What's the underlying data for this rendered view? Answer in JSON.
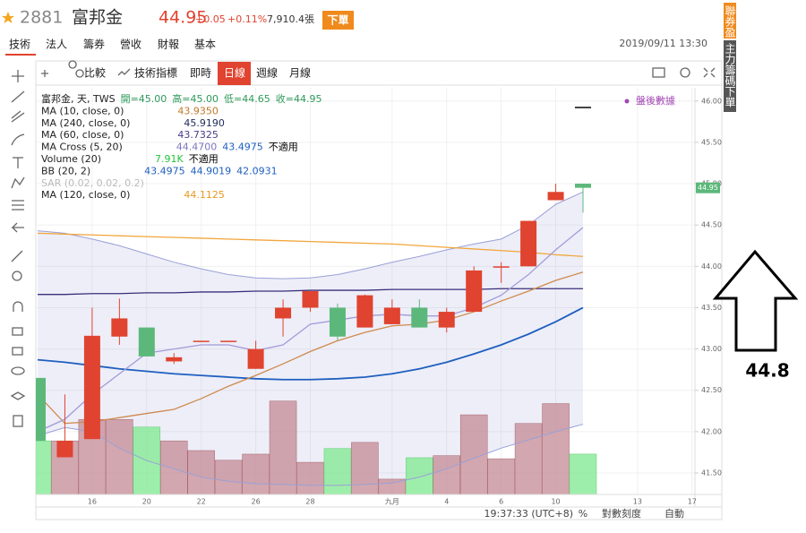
{
  "header": {
    "code": "2881",
    "name": "富邦金",
    "price": "44.95",
    "change": "+0.05",
    "change_pct": "+0.11%",
    "volume": "7,910.4張",
    "order_button": "下單"
  },
  "tabs": [
    "技術",
    "法人",
    "籌券",
    "營收",
    "財報",
    "基本"
  ],
  "datetime": "2019/09/11 13:30",
  "toolbar": [
    "比較",
    "技術指標",
    "即時",
    "日線",
    "週線",
    "月線"
  ],
  "side_tabs": [
    "聯券盈",
    "主力籌碼下單"
  ],
  "post_market": "盤後數據",
  "annotation": "44.8",
  "status_bar": {
    "time": "19:37:33 (UTC+8)",
    "percent": "%",
    "log": "對數刻度",
    "auto": "自動"
  },
  "legend": [
    {
      "name": "富邦金, 天, TWS",
      "values": [
        "開=45.00",
        "高=45.00",
        "低=44.65",
        "收=44.95"
      ],
      "colors": [
        "#2e9a5a",
        "#2e9a5a",
        "#2e9a5a",
        "#2e9a5a"
      ]
    },
    {
      "name": "MA (10, close, 0)",
      "values": [
        "43.9350"
      ],
      "colors": [
        "#c0782a"
      ]
    },
    {
      "name": "MA (240, close, 0)",
      "values": [
        "45.9190"
      ],
      "colors": [
        "#1e2a5a"
      ]
    },
    {
      "name": "MA (60, close, 0)",
      "values": [
        "43.7325"
      ],
      "colors": [
        "#4b3b8a"
      ]
    },
    {
      "name": "MA Cross (5, 20)",
      "values": [
        "44.4700",
        "43.4975",
        "不適用"
      ],
      "colors": [
        "#7d76c2",
        "#1f5fbf",
        "#000000"
      ]
    },
    {
      "name": "Volume (20)",
      "values": [
        "7.91K",
        "不適用"
      ],
      "colors": [
        "#22c43a",
        "#000000"
      ]
    },
    {
      "name": "BB (20, 2)",
      "values": [
        "43.4975",
        "44.9019",
        "42.0931"
      ],
      "colors": [
        "#1f5fbf",
        "#1f5fbf",
        "#1f5fbf"
      ]
    },
    {
      "name": "SAR (0.02, 0.02, 0.2)",
      "values": [],
      "colors": []
    },
    {
      "name": "MA (120, close, 0)",
      "values": [
        "44.1125"
      ],
      "colors": [
        "#e89a20"
      ]
    }
  ],
  "chart_data": {
    "type": "candlestick",
    "categories": [
      null,
      null,
      "16",
      null,
      "20",
      null,
      "22",
      null,
      "26",
      null,
      "28",
      null,
      null,
      "九月",
      null,
      "4",
      null,
      "6",
      null,
      "10",
      null,
      null,
      "13",
      null,
      "17"
    ],
    "open": [
      42.65,
      41.69,
      41.91,
      43.15,
      43.26,
      42.85,
      43.1,
      43.1,
      42.76,
      43.37,
      43.5,
      43.5,
      43.26,
      43.3,
      43.5,
      43.26,
      43.45,
      44.0,
      44.0,
      44.8,
      45.0,
      null,
      null,
      null,
      null
    ],
    "high": [
      42.65,
      42.45,
      43.5,
      43.61,
      43.26,
      42.95,
      43.1,
      43.1,
      43.1,
      43.6,
      43.7,
      43.55,
      43.66,
      43.6,
      43.6,
      43.5,
      44.0,
      44.05,
      44.55,
      45.0,
      45.0,
      null,
      null,
      null,
      null
    ],
    "low": [
      41.89,
      41.69,
      41.91,
      43.05,
      42.91,
      42.82,
      43.1,
      43.1,
      42.76,
      43.15,
      43.45,
      43.1,
      43.26,
      43.3,
      43.26,
      43.2,
      43.45,
      43.8,
      44.0,
      44.8,
      44.65,
      null,
      null,
      null,
      null
    ],
    "close": [
      41.89,
      41.89,
      43.16,
      43.37,
      42.91,
      42.9,
      43.1,
      43.1,
      43.0,
      43.5,
      43.7,
      43.15,
      43.65,
      43.5,
      43.26,
      43.45,
      43.95,
      44.0,
      44.55,
      44.9,
      44.95,
      null,
      null,
      null,
      null
    ],
    "volume": [
      10.5,
      10.5,
      14.7,
      14.7,
      13.2,
      10.5,
      8.6,
      6.7,
      7.9,
      18.3,
      6.3,
      9.0,
      10.2,
      3.0,
      7.2,
      7.6,
      15.6,
      7.0,
      13.9,
      17.8,
      7.91,
      null,
      null,
      null,
      null
    ],
    "up_color": "#e0432f",
    "down_color": "#5cb87a",
    "volume_up_color": "#c48a94",
    "volume_down_color": "#7de88f",
    "series": [
      {
        "color": "#f2a63c",
        "values": [
          44.4,
          44.39,
          44.38,
          44.37,
          44.36,
          44.35,
          44.34,
          44.33,
          44.32,
          44.31,
          44.3,
          44.29,
          44.28,
          44.27,
          44.25,
          44.23,
          44.21,
          44.19,
          44.17,
          44.14,
          44.12,
          null,
          null,
          null,
          null
        ]
      },
      {
        "color": "#3b2f7a",
        "values": [
          43.66,
          43.66,
          43.67,
          43.67,
          43.68,
          43.68,
          43.69,
          43.69,
          43.7,
          43.7,
          43.71,
          43.71,
          43.71,
          43.72,
          43.72,
          43.72,
          43.72,
          43.73,
          43.73,
          43.73,
          43.73,
          null,
          null,
          null,
          null
        ]
      },
      {
        "color": "#1f5fbf",
        "values": [
          42.87,
          42.84,
          42.8,
          42.76,
          42.73,
          42.7,
          42.68,
          42.66,
          42.64,
          42.63,
          42.63,
          42.64,
          42.66,
          42.7,
          42.76,
          42.84,
          42.94,
          43.05,
          43.18,
          43.33,
          43.5,
          null,
          null,
          null,
          null
        ]
      },
      {
        "color": "#cf8a4c",
        "values": [
          42.45,
          42.1,
          42.12,
          42.17,
          42.22,
          42.27,
          42.4,
          42.55,
          42.68,
          42.82,
          42.97,
          43.1,
          43.2,
          43.28,
          43.3,
          43.35,
          43.45,
          43.58,
          43.7,
          43.83,
          43.93,
          null,
          null,
          null,
          null
        ]
      },
      {
        "color": "#a29bd9",
        "values": [
          42.0,
          42.15,
          42.45,
          42.7,
          42.95,
          43.0,
          43.05,
          43.05,
          42.98,
          43.05,
          43.3,
          43.35,
          43.4,
          43.42,
          43.4,
          43.4,
          43.5,
          43.65,
          43.9,
          44.2,
          44.47,
          null,
          null,
          null,
          null
        ]
      }
    ],
    "band": {
      "color": "#9aa0d6",
      "upper": [
        44.43,
        44.4,
        44.33,
        44.25,
        44.15,
        44.05,
        43.97,
        43.9,
        43.86,
        43.85,
        43.86,
        43.9,
        43.97,
        44.05,
        44.12,
        44.2,
        44.27,
        44.33,
        44.5,
        44.75,
        44.9,
        null,
        null,
        null,
        null
      ],
      "lower": [
        41.95,
        42.05,
        42.0,
        41.8,
        41.65,
        41.55,
        41.45,
        41.4,
        41.37,
        41.36,
        41.35,
        41.35,
        41.36,
        41.38,
        41.45,
        41.55,
        41.68,
        41.8,
        41.9,
        42.0,
        42.09,
        null,
        null,
        null,
        null
      ]
    },
    "ylim": [
      41.24,
      46.16
    ],
    "yticks": [
      {
        "value": 41.5,
        "label": "41.50"
      },
      {
        "value": 42,
        "label": "42.00"
      },
      {
        "value": 42.5,
        "label": "42.50"
      },
      {
        "value": 43,
        "label": "43.00"
      },
      {
        "value": 43.5,
        "label": "43.50"
      },
      {
        "value": 44,
        "label": "44.00"
      },
      {
        "value": 44.5,
        "label": "44.50"
      },
      {
        "value": 45,
        "label": "45.00"
      },
      {
        "value": 45.5,
        "label": "45.50"
      },
      {
        "value": 46,
        "label": "46.00"
      }
    ],
    "grid": true
  }
}
